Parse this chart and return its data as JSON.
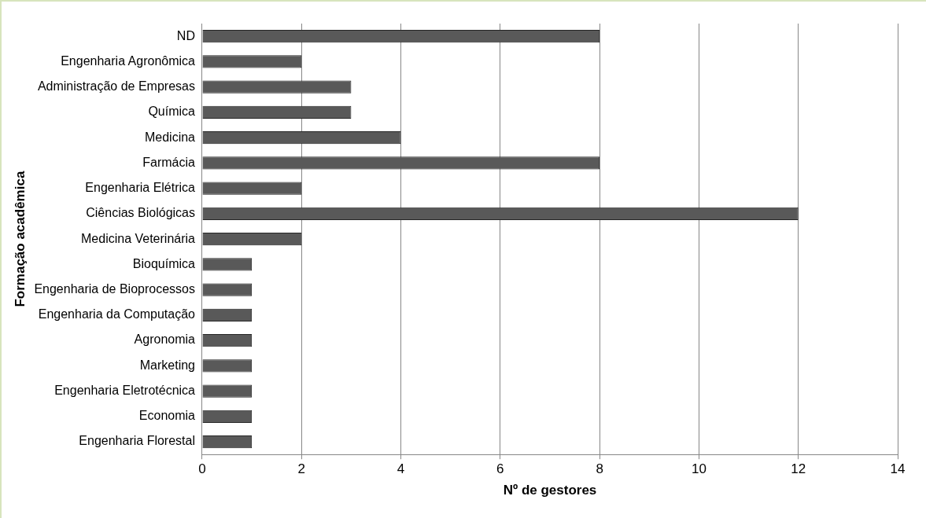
{
  "chart_data": {
    "type": "bar",
    "orientation": "horizontal",
    "xlabel": "Nº de gestores",
    "ylabel": "Formação acadêmica",
    "categories": [
      "ND",
      "Engenharia Agronômica",
      "Administração de Empresas",
      "Química",
      "Medicina",
      "Farmácia",
      "Engenharia Elétrica",
      "Ciências Biológicas",
      "Medicina Veterinária",
      "Bioquímica",
      "Engenharia de Bioprocessos",
      "Engenharia da Computação",
      "Agronomia",
      "Marketing",
      "Engenharia Eletrotécnica",
      "Economia",
      "Engenharia Florestal"
    ],
    "values": [
      8,
      2,
      3,
      3,
      4,
      8,
      2,
      12,
      2,
      1,
      1,
      1,
      1,
      1,
      1,
      1,
      1
    ],
    "color": "#595959",
    "xlim": [
      0,
      14
    ],
    "xticks": [
      0,
      2,
      4,
      6,
      8,
      10,
      12,
      14
    ],
    "grid": "x"
  }
}
